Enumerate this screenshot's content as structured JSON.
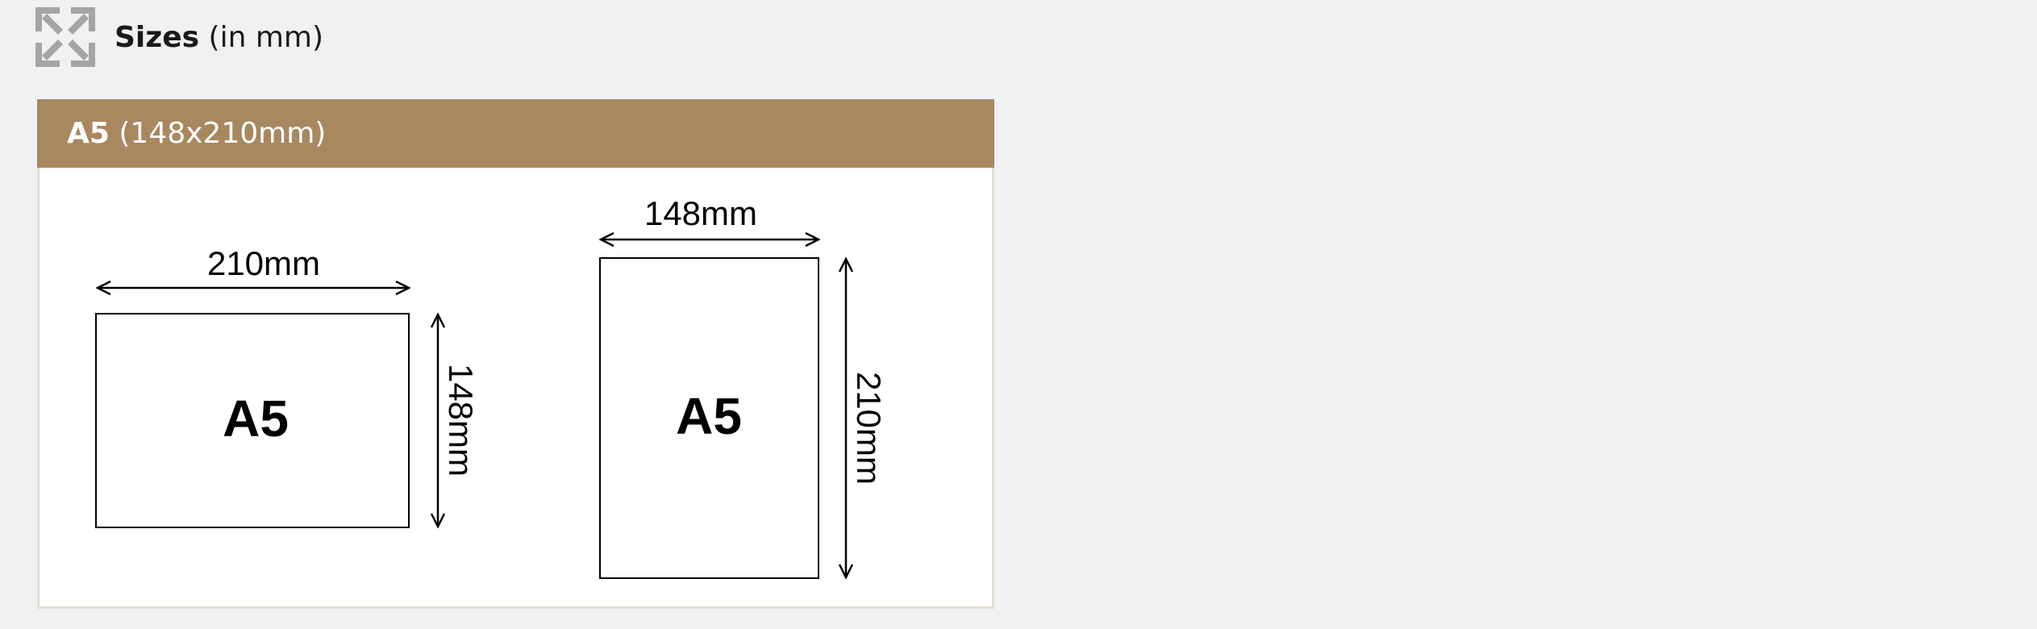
{
  "section": {
    "icon": "expand-arrows-icon",
    "title_strong": "Sizes",
    "title_rest": " (in mm)"
  },
  "card": {
    "title_strong": "A5",
    "title_rest": " (148x210mm)",
    "header_color": "#a8885f"
  },
  "diagram": {
    "landscape": {
      "width_label": "210mm",
      "height_label": "148mm",
      "page_label": "A5"
    },
    "portrait": {
      "width_label": "148mm",
      "height_label": "210mm",
      "page_label": "A5"
    }
  }
}
